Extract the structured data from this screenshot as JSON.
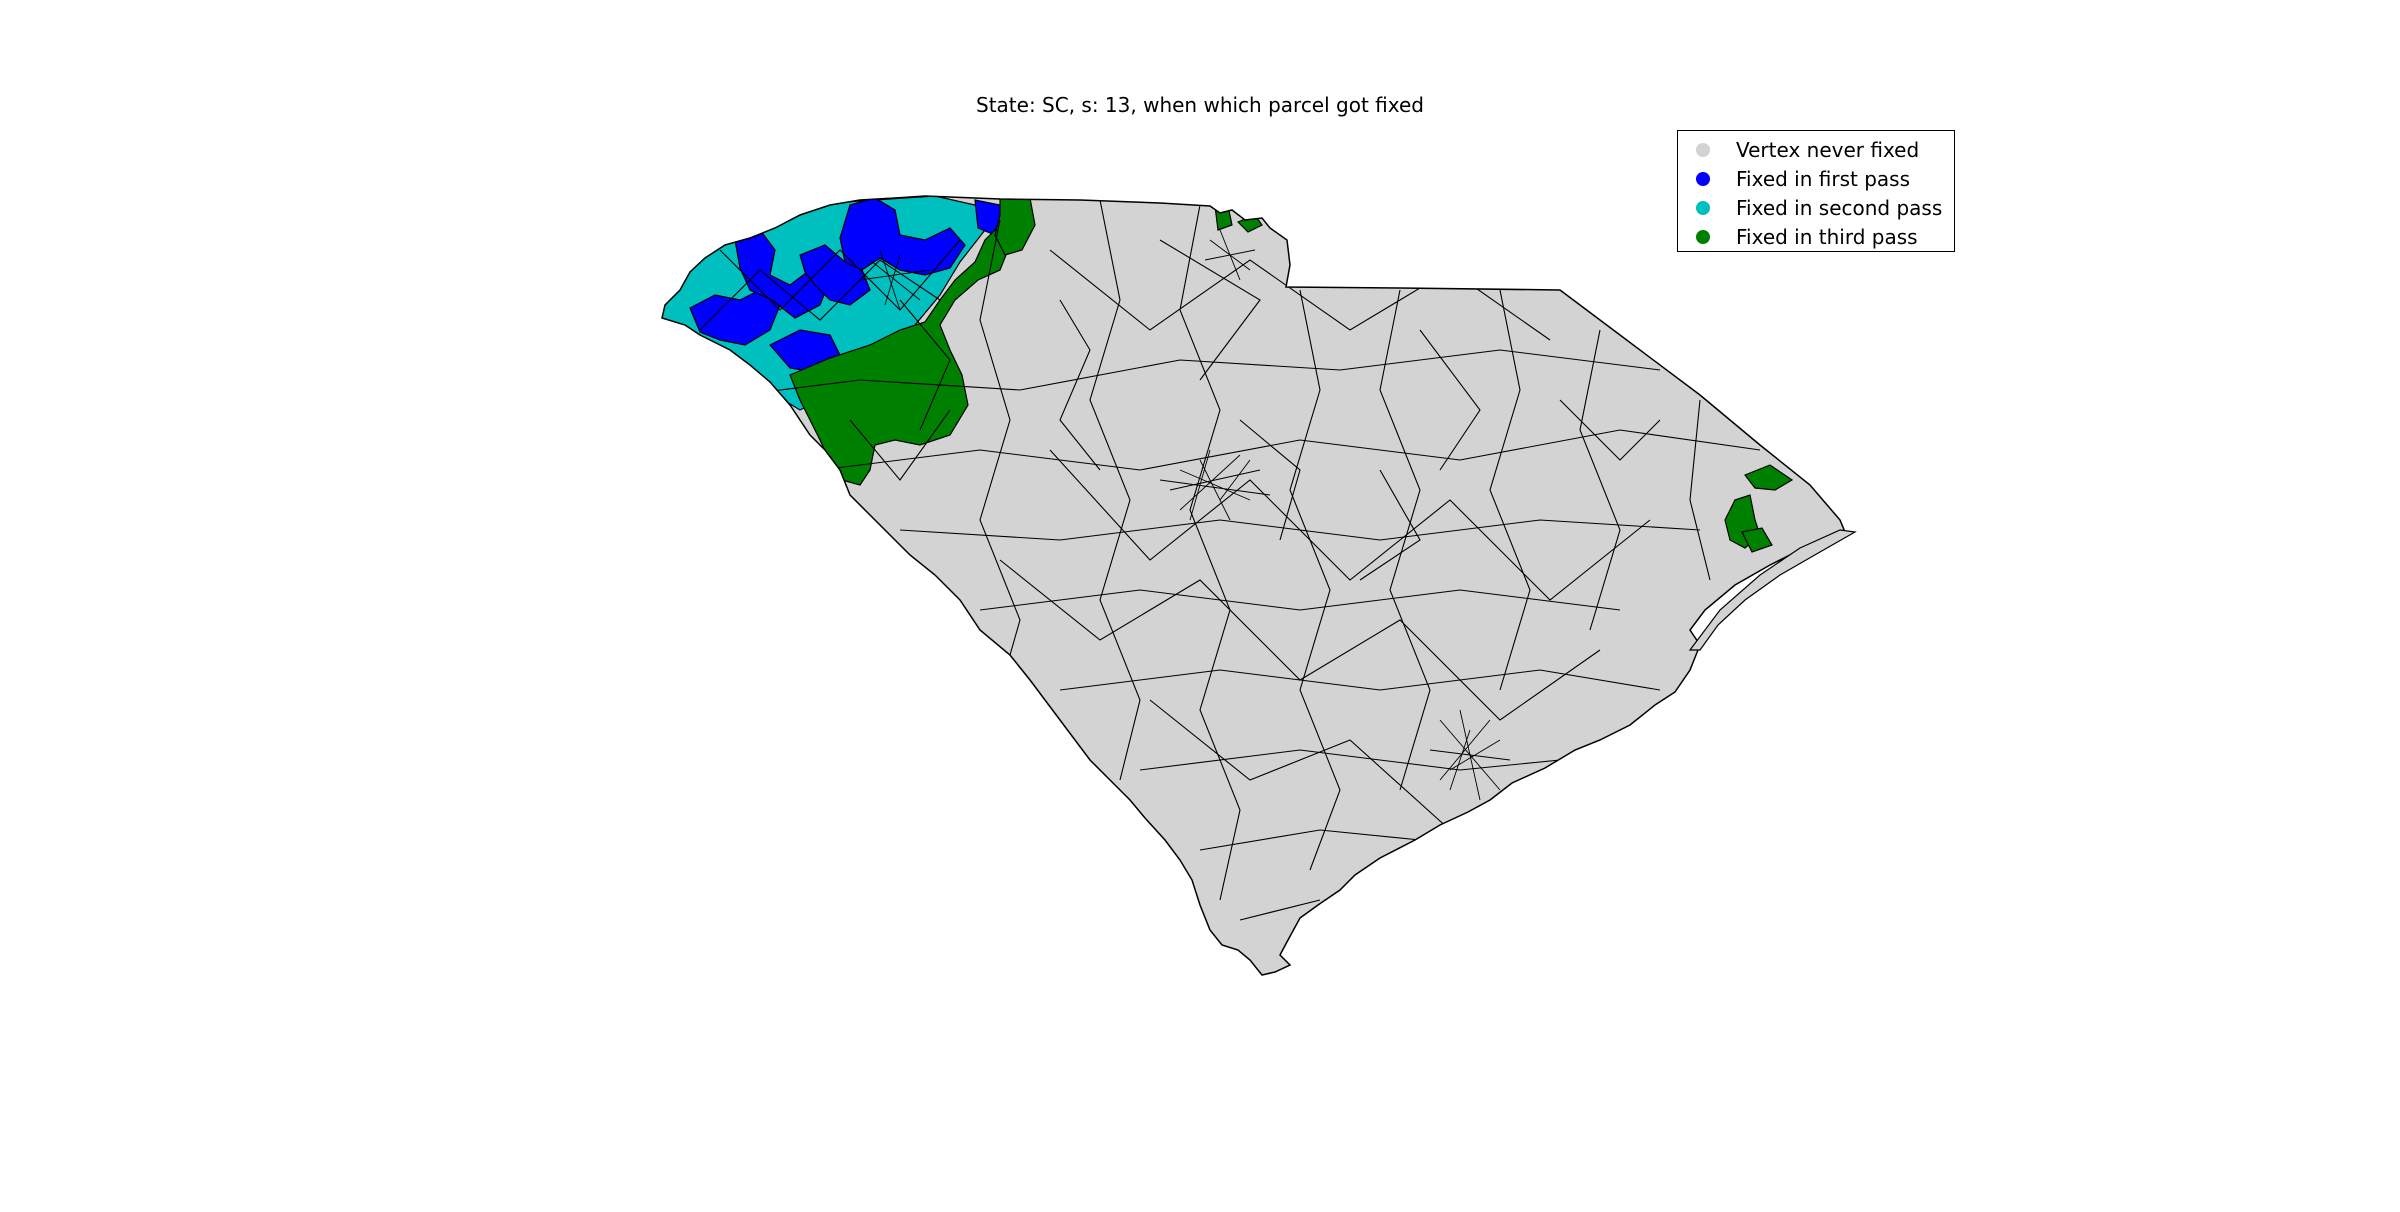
{
  "title": "State: SC, s: 13, when which parcel got fixed",
  "legend": {
    "items": [
      {
        "label": "Vertex never fixed",
        "color": "#d3d3d3"
      },
      {
        "label": "Fixed in first pass",
        "color": "#0000ff"
      },
      {
        "label": "Fixed in second pass",
        "color": "#00bfbf"
      },
      {
        "label": "Fixed in third pass",
        "color": "#008000"
      }
    ]
  },
  "map": {
    "state": "SC",
    "s": 13,
    "edge_color": "#000000"
  }
}
